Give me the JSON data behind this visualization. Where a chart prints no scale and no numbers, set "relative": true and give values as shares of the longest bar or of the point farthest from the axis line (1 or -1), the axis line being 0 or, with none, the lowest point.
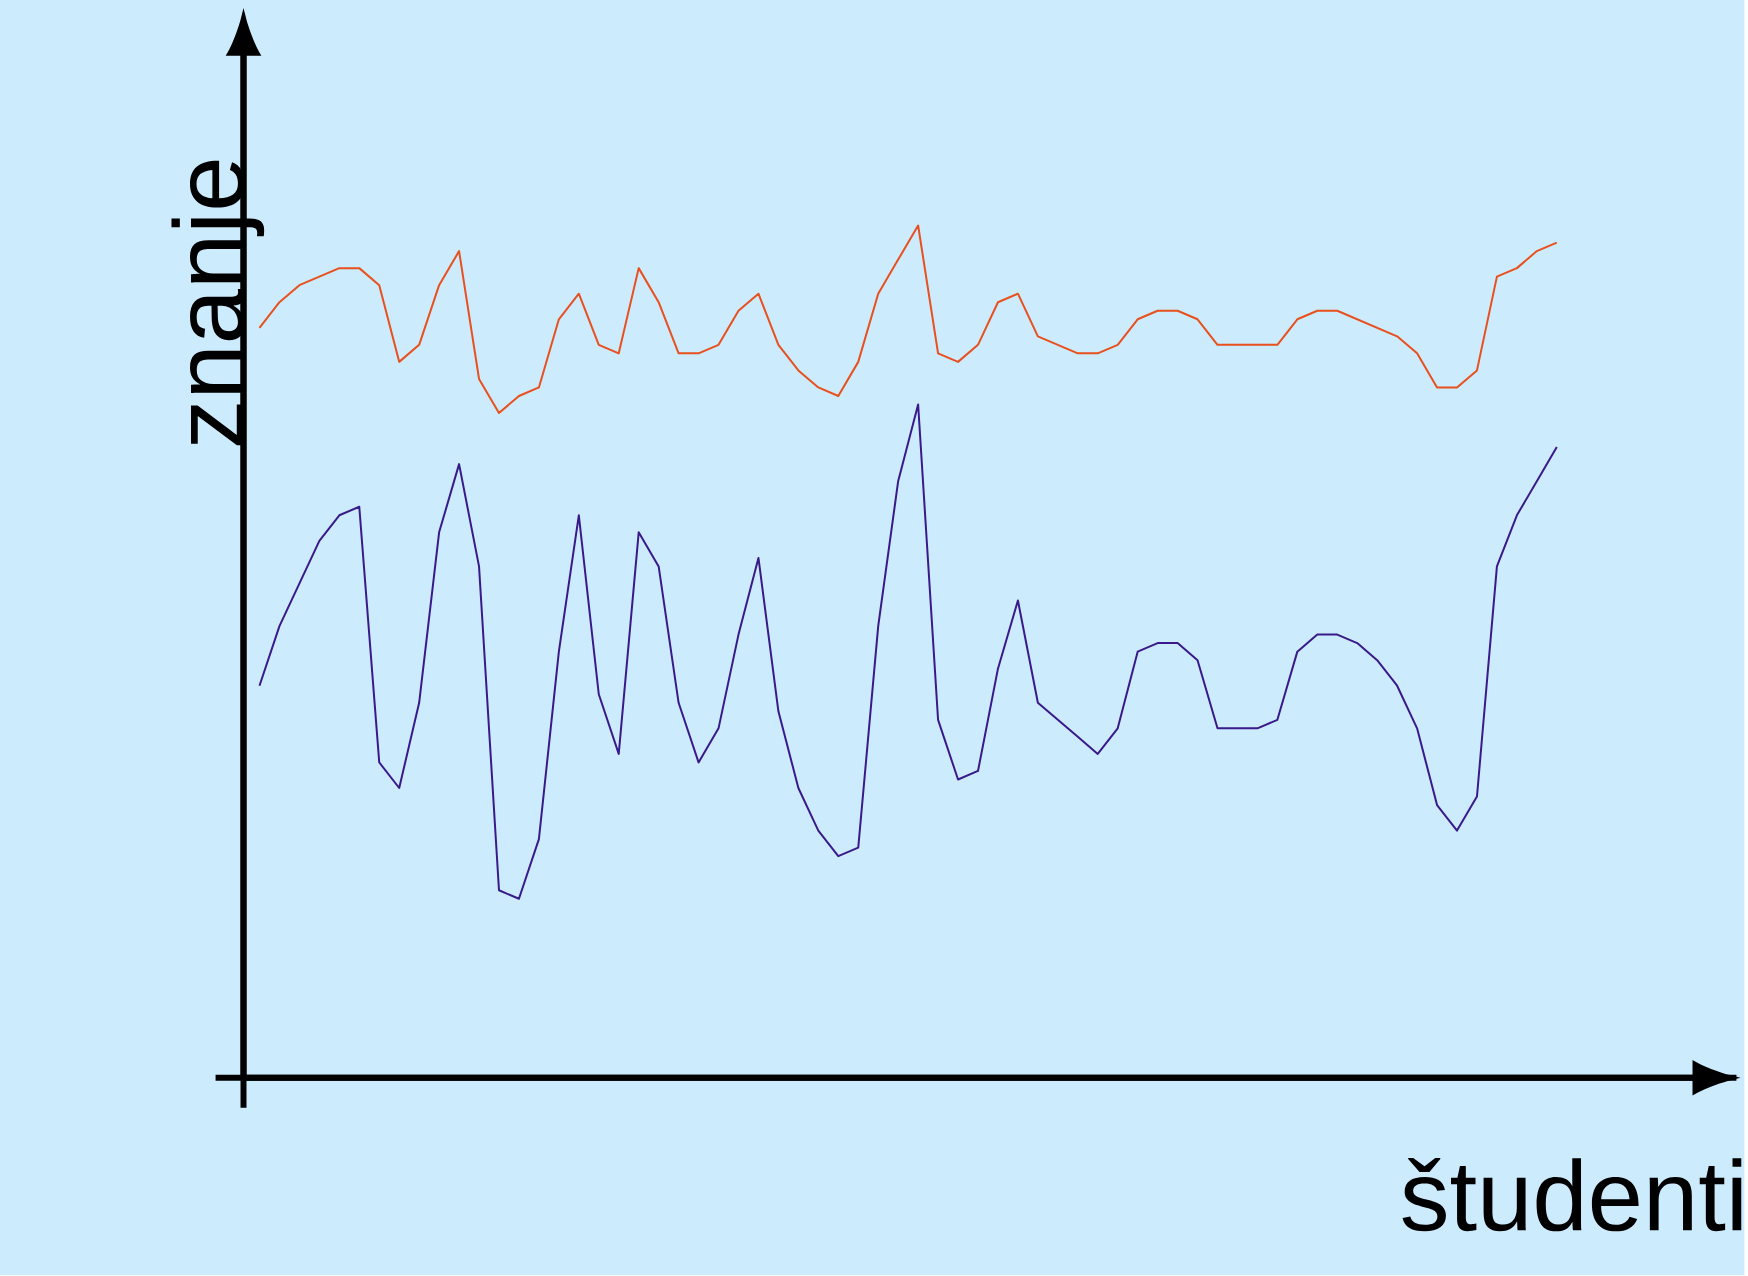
{
  "chart_data": {
    "type": "line",
    "xlabel": "študenti",
    "ylabel": "znanje",
    "relative": true,
    "tick_labels": false,
    "marker": "none",
    "categories": [
      null,
      null,
      null,
      null,
      null,
      null,
      null,
      null,
      null,
      null,
      null,
      null,
      null,
      null,
      null,
      null,
      null,
      null,
      null,
      null,
      null,
      null,
      null,
      null,
      null,
      null,
      null,
      null,
      null,
      null,
      null,
      null,
      null,
      null,
      null,
      null,
      null,
      null,
      null,
      null,
      null,
      null,
      null,
      null,
      null,
      null,
      null,
      null,
      null,
      null,
      null,
      null,
      null,
      null,
      null,
      null,
      null,
      null,
      null,
      null,
      null,
      null,
      null,
      null,
      null,
      null
    ],
    "series": [
      {
        "color": "#e8501e",
        "values": [
          0.88,
          0.91,
          0.93,
          0.94,
          0.95,
          0.95,
          0.93,
          0.84,
          0.86,
          0.93,
          0.97,
          0.82,
          0.78,
          0.8,
          0.81,
          0.89,
          0.92,
          0.86,
          0.85,
          0.95,
          0.91,
          0.85,
          0.85,
          0.86,
          0.9,
          0.92,
          0.86,
          0.83,
          0.81,
          0.8,
          0.84,
          0.92,
          0.96,
          1.0,
          0.85,
          0.84,
          0.86,
          0.91,
          0.92,
          0.87,
          0.86,
          0.85,
          0.85,
          0.86,
          0.89,
          0.9,
          0.9,
          0.89,
          0.86,
          0.86,
          0.86,
          0.86,
          0.89,
          0.9,
          0.9,
          0.89,
          0.88,
          0.87,
          0.85,
          0.81,
          0.81,
          0.83,
          0.94,
          0.95,
          0.97,
          0.98
        ]
      },
      {
        "color": "#3a1a8a",
        "values": [
          0.46,
          0.53,
          0.58,
          0.63,
          0.66,
          0.67,
          0.37,
          0.34,
          0.44,
          0.64,
          0.72,
          0.6,
          0.22,
          0.21,
          0.28,
          0.5,
          0.66,
          0.45,
          0.38,
          0.64,
          0.6,
          0.44,
          0.37,
          0.41,
          0.52,
          0.61,
          0.43,
          0.34,
          0.29,
          0.26,
          0.27,
          0.53,
          0.7,
          0.79,
          0.42,
          0.35,
          0.36,
          0.48,
          0.56,
          0.44,
          0.42,
          0.4,
          0.38,
          0.41,
          0.5,
          0.51,
          0.51,
          0.49,
          0.41,
          0.41,
          0.41,
          0.42,
          0.5,
          0.52,
          0.52,
          0.51,
          0.49,
          0.46,
          0.41,
          0.32,
          0.29,
          0.33,
          0.6,
          0.66,
          0.7,
          0.74
        ]
      }
    ]
  }
}
